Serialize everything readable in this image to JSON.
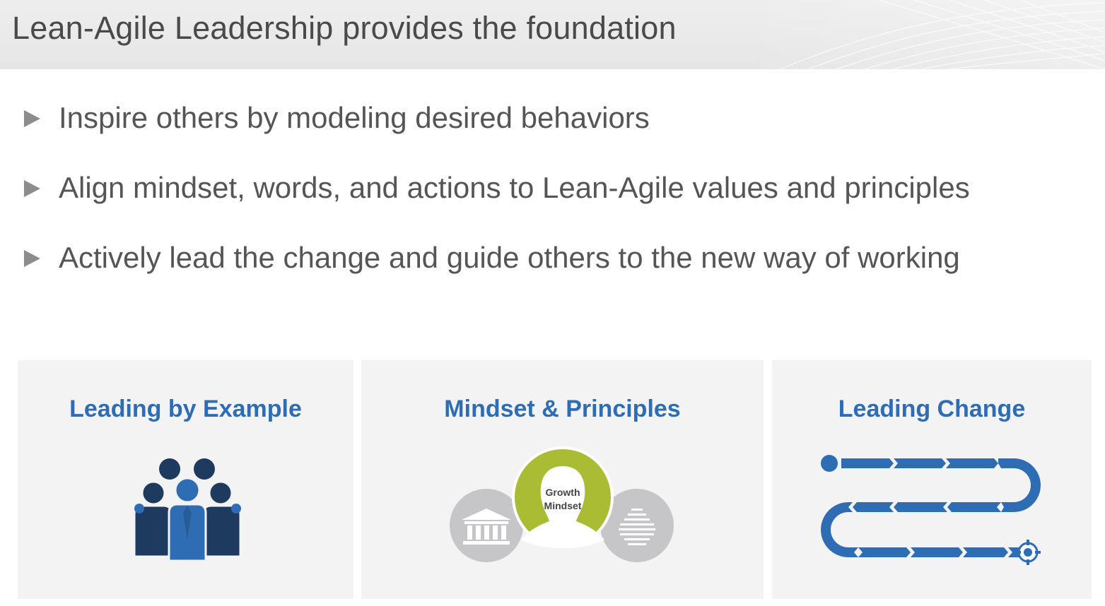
{
  "header": {
    "title": "Lean-Agile Leadership provides the foundation"
  },
  "bullets": [
    {
      "text": "Inspire others by modeling desired behaviors"
    },
    {
      "text": "Align mindset, words, and actions to Lean-Agile values and principles"
    },
    {
      "text": "Actively lead the change and guide others to the new way of working"
    }
  ],
  "panels": [
    {
      "title": "Leading by Example",
      "icon": "people-group-icon"
    },
    {
      "title": "Mindset & Principles",
      "icon": "growth-mindset-icon",
      "center_label_line1": "Growth",
      "center_label_line2": "Mindset"
    },
    {
      "title": "Leading Change",
      "icon": "roadmap-path-icon"
    }
  ],
  "colors": {
    "title_text": "#4a4a4a",
    "bullet_text": "#555555",
    "panel_title": "#2e6db4",
    "panel_bg": "#f3f3f4",
    "people_dark": "#1f3a5f",
    "people_blue": "#2e6db4",
    "mindset_green": "#a9bc34",
    "mindset_gray": "#c6c6c9",
    "path_blue": "#2e6db4"
  }
}
